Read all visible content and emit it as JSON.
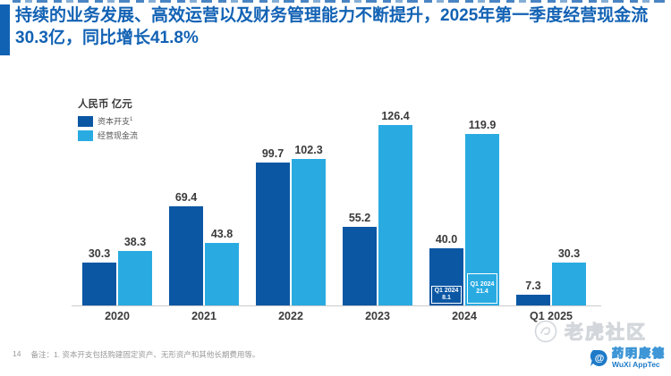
{
  "header": {
    "title": "持续的业务发展、高效运营以及财务管理能力不断提升，2025年第一季度经营现金流30.3亿，同比增长41.8%"
  },
  "chart": {
    "unit_label": "人民币 亿元",
    "legend": [
      {
        "label": "资本开支",
        "sup": "1"
      },
      {
        "label": "经营现金流",
        "sup": ""
      }
    ]
  },
  "chart_data": {
    "type": "bar",
    "categories": [
      "2020",
      "2021",
      "2022",
      "2023",
      "2024",
      "Q1 2025"
    ],
    "series": [
      {
        "name": "资本开支",
        "color": "#0B57A4",
        "values": [
          30.3,
          69.4,
          99.7,
          55.2,
          40.0,
          7.3
        ]
      },
      {
        "name": "经营现金流",
        "color": "#29ABE2",
        "values": [
          38.3,
          43.8,
          102.3,
          126.4,
          119.9,
          30.3
        ]
      }
    ],
    "annotations": [
      {
        "category": "2024",
        "series": "资本开支",
        "label": "Q1 2024",
        "value": 8.1
      },
      {
        "category": "2024",
        "series": "经营现金流",
        "label": "Q1 2024",
        "value": 21.4
      }
    ],
    "title": "",
    "xlabel": "",
    "ylabel": "人民币 亿元",
    "ylim": [
      0,
      130
    ],
    "grid": false,
    "legend_position": "top-left",
    "value_labels": "above-bars, one decimal"
  },
  "colors": {
    "accent_blue": "#1262B4",
    "bar_dark_blue": "#0B57A4",
    "bar_light_blue": "#29ABE2",
    "axis_line": "#CBCBCB",
    "label_text": "#3A3A3A"
  },
  "footer": {
    "page_number": "14",
    "note": "备注：1. 资本开支包括购建固定资产、无形资产和其他长期费用等。"
  },
  "watermark": {
    "text": "老虎社区"
  },
  "logo": {
    "cn": "药明康德",
    "en": "WuXi AppTec"
  }
}
